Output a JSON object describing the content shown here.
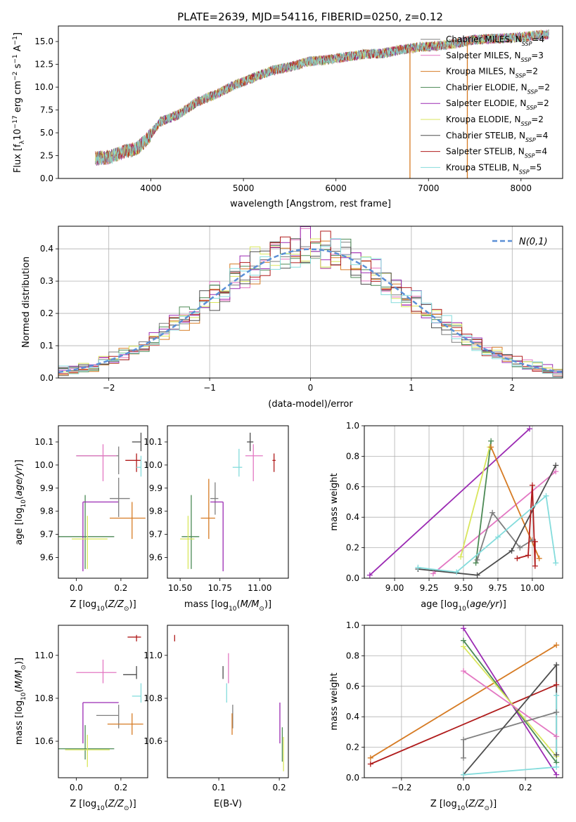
{
  "figure": {
    "title": "PLATE=2639, MJD=54116, FIBERID=0250, z=0.12"
  },
  "models": [
    {
      "name": "Chabrier MILES",
      "nssp": "4",
      "color": "#7f7f7f"
    },
    {
      "name": "Salpeter MILES",
      "nssp": "3",
      "color": "#e377c2"
    },
    {
      "name": "Kroupa MILES",
      "nssp": "2",
      "color": "#d67b24"
    },
    {
      "name": "Chabrier ELODIE",
      "nssp": "2",
      "color": "#4c8a55"
    },
    {
      "name": "Salpeter ELODIE",
      "nssp": "2",
      "color": "#9b2ab3"
    },
    {
      "name": "Kroupa ELODIE",
      "nssp": "2",
      "color": "#d9e65c"
    },
    {
      "name": "Chabrier STELIB",
      "nssp": "4",
      "color": "#4d4d4d"
    },
    {
      "name": "Salpeter STELIB",
      "nssp": "4",
      "color": "#b01c1c"
    },
    {
      "name": "Kroupa STELIB",
      "nssp": "5",
      "color": "#84dcdc"
    }
  ],
  "chart_data": [
    {
      "type": "line",
      "panel": "spectrum",
      "title": "PLATE=2639, MJD=54116, FIBERID=0250, z=0.12",
      "xlabel": "wavelength [Angstrom, rest frame]",
      "ylabel": "Flux [f_λ 10^-17 erg cm^-2 s^-1 A^-1]",
      "xlim": [
        3000,
        8450
      ],
      "ylim": [
        0,
        16.7
      ],
      "xticks": [
        4000,
        5000,
        6000,
        7000,
        8000
      ],
      "yticks": [
        0.0,
        2.5,
        5.0,
        7.5,
        10.0,
        12.5,
        15.0
      ],
      "legend_position": "right",
      "continuum": {
        "x": [
          3400,
          3550,
          3700,
          3850,
          3950,
          4100,
          4300,
          4500,
          4700,
          4900,
          5100,
          5300,
          5500,
          5700,
          5900,
          6100,
          6300,
          6500,
          6700,
          6900,
          7100,
          7300,
          7500,
          7700,
          7900,
          8100,
          8300
        ],
        "y": [
          2.2,
          2.3,
          2.9,
          3.3,
          4.2,
          6.2,
          7.0,
          8.4,
          9.2,
          10.2,
          11.0,
          11.8,
          12.2,
          12.8,
          13.0,
          13.3,
          13.6,
          13.7,
          14.1,
          14.4,
          14.5,
          14.8,
          15.2,
          15.3,
          15.4,
          15.6,
          15.8
        ]
      },
      "spikes": [
        {
          "x": 6800,
          "y": 0.0,
          "series": "Kroupa MILES"
        },
        {
          "x": 7420,
          "y": 0.0,
          "series": "Kroupa MILES"
        }
      ]
    },
    {
      "type": "step",
      "panel": "residual-histogram",
      "xlabel": "(data-model)/error",
      "ylabel": "Normed distribution",
      "xlim": [
        -2.5,
        2.5
      ],
      "ylim": [
        0,
        0.47
      ],
      "xticks": [
        -2,
        -1,
        0,
        1,
        2
      ],
      "yticks": [
        0.0,
        0.1,
        0.2,
        0.3,
        0.4
      ],
      "grid": true,
      "legend": "N(0,1)",
      "legend_position": "top-right",
      "bin_width": 0.1,
      "gaussian": {
        "mean": 0,
        "sigma": 1
      }
    },
    {
      "type": "scatter",
      "panel": "age-vs-Z",
      "xlabel": "Z [log10(Z/Z_sun)]",
      "ylabel": "age [log10(age/yr)]",
      "xlim": [
        -0.08,
        0.32
      ],
      "ylim": [
        9.51,
        10.17
      ],
      "xticks": [
        0.0,
        0.2
      ],
      "yticks": [
        9.6,
        9.7,
        9.8,
        9.9,
        10.0,
        10.1
      ],
      "points": [
        {
          "series": "Chabrier MILES",
          "x": 0.19,
          "xerr": [
            0.19,
            0.0
          ],
          "y": 10.04,
          "yerr": [
            0.08,
            0.04
          ]
        },
        {
          "series": "Salpeter MILES",
          "x": 0.12,
          "xerr": [
            0.12,
            0.06
          ],
          "y": 10.04,
          "yerr": [
            0.11,
            0.05
          ]
        },
        {
          "series": "Kroupa MILES",
          "x": 0.25,
          "xerr": [
            0.1,
            0.06
          ],
          "y": 9.77,
          "yerr": [
            0.09,
            0.07
          ]
        },
        {
          "series": "Chabrier ELODIE",
          "x": 0.04,
          "xerr": [
            0.15,
            0.13
          ],
          "y": 9.69,
          "yerr": [
            0.14,
            0.18
          ]
        },
        {
          "series": "Salpeter ELODIE",
          "x": 0.03,
          "xerr": [
            0.0,
            0.16
          ],
          "y": 9.84,
          "yerr": [
            0.3,
            0.0
          ]
        },
        {
          "series": "Kroupa ELODIE",
          "x": 0.05,
          "xerr": [
            0.07,
            0.09
          ],
          "y": 9.68,
          "yerr": [
            0.13,
            0.1
          ]
        },
        {
          "series": "Chabrier STELIB",
          "x": 0.29,
          "xerr": [
            0.04,
            0.0
          ],
          "y": 10.1,
          "yerr": [
            0.04,
            0.04
          ]
        },
        {
          "series": "Salpeter STELIB",
          "x": 0.27,
          "xerr": [
            0.05,
            0.02
          ],
          "y": 10.02,
          "yerr": [
            0.05,
            0.03
          ]
        },
        {
          "series": "Kroupa STELIB",
          "x": 0.29,
          "xerr": [
            0.02,
            0.0
          ],
          "y": 9.99,
          "yerr": [
            0.04,
            0.05
          ]
        },
        {
          "series": "Chabrier MILES",
          "x": 0.19,
          "xerr": [
            0.04,
            0.05
          ],
          "y": 9.855,
          "yerr": [
            0.08,
            0.09
          ]
        }
      ]
    },
    {
      "type": "scatter",
      "panel": "age-vs-mass",
      "xlabel": "mass [log10(M/M_sun)]",
      "ylabel": "",
      "xlim": [
        10.42,
        11.18
      ],
      "ylim": [
        9.51,
        10.17
      ],
      "xticks": [
        10.5,
        10.75,
        11.0
      ],
      "yticks": [
        9.6,
        9.7,
        9.8,
        9.9,
        10.0,
        10.1
      ],
      "points": [
        {
          "series": "Chabrier MILES",
          "x": 10.72,
          "xerr": [
            0.03,
            0.02
          ],
          "y": 9.855,
          "yerr": [
            0.07,
            0.07
          ]
        },
        {
          "series": "Salpeter MILES",
          "x": 10.96,
          "xerr": [
            0.05,
            0.06
          ],
          "y": 10.04,
          "yerr": [
            0.11,
            0.05
          ]
        },
        {
          "series": "Kroupa MILES",
          "x": 10.68,
          "xerr": [
            0.05,
            0.04
          ],
          "y": 9.77,
          "yerr": [
            0.09,
            0.17
          ]
        },
        {
          "series": "Chabrier ELODIE",
          "x": 10.57,
          "xerr": [
            0.06,
            0.05
          ],
          "y": 9.69,
          "yerr": [
            0.14,
            0.18
          ]
        },
        {
          "series": "Salpeter ELODIE",
          "x": 10.77,
          "xerr": [
            0.08,
            0.0
          ],
          "y": 9.84,
          "yerr": [
            0.3,
            0.0
          ]
        },
        {
          "series": "Kroupa ELODIE",
          "x": 10.55,
          "xerr": [
            0.05,
            0.04
          ],
          "y": 9.68,
          "yerr": [
            0.13,
            0.1
          ]
        },
        {
          "series": "Chabrier STELIB",
          "x": 10.94,
          "xerr": [
            0.02,
            0.02
          ],
          "y": 10.1,
          "yerr": [
            0.04,
            0.04
          ]
        },
        {
          "series": "Salpeter STELIB",
          "x": 11.09,
          "xerr": [
            0.01,
            0.01
          ],
          "y": 10.02,
          "yerr": [
            0.05,
            0.03
          ]
        },
        {
          "series": "Kroupa STELIB",
          "x": 10.87,
          "xerr": [
            0.04,
            0.02
          ],
          "y": 9.99,
          "yerr": [
            0.04,
            0.08
          ]
        }
      ]
    },
    {
      "type": "line",
      "panel": "mass-weight-vs-age",
      "xlabel": "age [log10(age/yr)]",
      "ylabel": "mass weight",
      "xlim": [
        8.78,
        10.22
      ],
      "ylim": [
        0,
        1.0
      ],
      "xticks": [
        9.0,
        9.25,
        9.5,
        9.75,
        10.0
      ],
      "yticks": [
        0.0,
        0.2,
        0.4,
        0.6,
        0.8,
        1.0
      ],
      "grid": true,
      "series": [
        {
          "name": "Salpeter ELODIE",
          "x": [
            8.82,
            9.98
          ],
          "y": [
            0.02,
            0.98
          ]
        },
        {
          "name": "Salpeter MILES",
          "x": [
            9.28,
            10.17
          ],
          "y": [
            0.03,
            0.7
          ]
        },
        {
          "name": "Kroupa ELODIE",
          "x": [
            9.48,
            9.69
          ],
          "y": [
            0.14,
            0.86
          ]
        },
        {
          "name": "Chabrier ELODIE",
          "x": [
            9.59,
            9.7
          ],
          "y": [
            0.1,
            0.9
          ]
        },
        {
          "name": "Kroupa MILES",
          "x": [
            9.7,
            10.05
          ],
          "y": [
            0.86,
            0.13
          ]
        },
        {
          "name": "Chabrier MILES",
          "x": [
            9.6,
            9.71,
            9.91,
            10.0
          ],
          "y": [
            0.12,
            0.43,
            0.2,
            0.25
          ]
        },
        {
          "name": "Chabrier STELIB",
          "x": [
            9.17,
            9.6,
            9.85,
            10.17
          ],
          "y": [
            0.06,
            0.02,
            0.18,
            0.74
          ]
        },
        {
          "name": "Salpeter STELIB",
          "x": [
            9.89,
            9.97,
            10.0,
            10.02,
            10.02
          ],
          "y": [
            0.13,
            0.15,
            0.61,
            0.08,
            0.24
          ]
        },
        {
          "name": "Kroupa STELIB",
          "x": [
            9.17,
            9.45,
            9.75,
            10.1,
            10.17
          ],
          "y": [
            0.07,
            0.04,
            0.27,
            0.54,
            0.1
          ]
        }
      ]
    },
    {
      "type": "scatter",
      "panel": "mass-vs-Z",
      "xlabel": "Z [log10(Z/Z_sun)]",
      "ylabel": "mass [log10(M/M_sun)]",
      "xlim": [
        -0.08,
        0.32
      ],
      "ylim": [
        10.43,
        11.14
      ],
      "xticks": [
        0.0,
        0.2
      ],
      "yticks": [
        10.6,
        10.8,
        11.0
      ],
      "points": [
        {
          "series": "Chabrier MILES",
          "x": 0.19,
          "xerr": [
            0.1,
            0.0
          ],
          "y": 10.72,
          "yerr": [
            0.06,
            0.05
          ]
        },
        {
          "series": "Salpeter MILES",
          "x": 0.12,
          "xerr": [
            0.12,
            0.06
          ],
          "y": 10.92,
          "yerr": [
            0.05,
            0.06
          ]
        },
        {
          "series": "Kroupa MILES",
          "x": 0.25,
          "xerr": [
            0.11,
            0.05
          ],
          "y": 10.68,
          "yerr": [
            0.05,
            0.05
          ]
        },
        {
          "series": "Chabrier ELODIE",
          "x": 0.04,
          "xerr": [
            0.13,
            0.13
          ],
          "y": 10.565,
          "yerr": [
            0.05,
            0.11
          ]
        },
        {
          "series": "Salpeter ELODIE",
          "x": 0.03,
          "xerr": [
            0.0,
            0.16
          ],
          "y": 10.78,
          "yerr": [
            0.19,
            0.0
          ]
        },
        {
          "series": "Kroupa ELODIE",
          "x": 0.05,
          "xerr": [
            0.1,
            0.1
          ],
          "y": 10.56,
          "yerr": [
            0.08,
            0.07
          ]
        },
        {
          "series": "Chabrier STELIB",
          "x": 0.27,
          "xerr": [
            0.06,
            0.0
          ],
          "y": 10.91,
          "yerr": [
            0.02,
            0.04
          ]
        },
        {
          "series": "Salpeter STELIB",
          "x": 0.27,
          "xerr": [
            0.04,
            0.02
          ],
          "y": 11.085,
          "yerr": [
            0.02,
            0.01
          ]
        },
        {
          "series": "Kroupa STELIB",
          "x": 0.29,
          "xerr": [
            0.04,
            0.0
          ],
          "y": 10.81,
          "yerr": [
            0.03,
            0.06
          ]
        }
      ]
    },
    {
      "type": "scatter",
      "panel": "mass-vs-EBV",
      "xlabel": "E(B-V)",
      "ylabel": "",
      "xlim": [
        0.015,
        0.215
      ],
      "ylim": [
        10.43,
        11.14
      ],
      "xticks": [
        0.1,
        0.2
      ],
      "yticks": [
        10.6,
        10.8,
        11.0
      ],
      "points": [
        {
          "series": "Chabrier MILES",
          "x": 0.123,
          "y": 10.72,
          "yerr": [
            0.06,
            0.05
          ]
        },
        {
          "series": "Salpeter MILES",
          "x": 0.116,
          "y": 10.92,
          "yerr": [
            0.05,
            0.09
          ]
        },
        {
          "series": "Kroupa MILES",
          "x": 0.122,
          "y": 10.68,
          "yerr": [
            0.05,
            0.05
          ]
        },
        {
          "series": "Chabrier ELODIE",
          "x": 0.205,
          "y": 10.565,
          "yerr": [
            0.06,
            0.1
          ]
        },
        {
          "series": "Salpeter ELODIE",
          "x": 0.201,
          "y": 10.78,
          "yerr": [
            0.19,
            0.0
          ]
        },
        {
          "series": "Kroupa ELODIE",
          "x": 0.207,
          "y": 10.56,
          "yerr": [
            0.1,
            0.06
          ]
        },
        {
          "series": "Chabrier STELIB",
          "x": 0.107,
          "y": 10.91,
          "yerr": [
            0.02,
            0.04
          ]
        },
        {
          "series": "Salpeter STELIB",
          "x": 0.027,
          "y": 11.085,
          "yerr": [
            0.02,
            0.01
          ]
        },
        {
          "series": "Kroupa STELIB",
          "x": 0.113,
          "y": 10.81,
          "yerr": [
            0.03,
            0.06
          ]
        }
      ]
    },
    {
      "type": "line",
      "panel": "mass-weight-vs-Z",
      "xlabel": "Z [log10(Z/Z_sun)]",
      "ylabel": "mass weight",
      "xlim": [
        -0.32,
        0.32
      ],
      "ylim": [
        0,
        1.0
      ],
      "xticks": [
        -0.2,
        0.0,
        0.2
      ],
      "yticks": [
        0.0,
        0.2,
        0.4,
        0.6,
        0.8,
        1.0
      ],
      "grid": true,
      "series": [
        {
          "name": "Kroupa MILES",
          "x": [
            -0.3,
            0.3
          ],
          "y": [
            0.13,
            0.87
          ]
        },
        {
          "name": "Salpeter STELIB",
          "x": [
            -0.3,
            0.3
          ],
          "y": [
            0.09,
            0.61
          ]
        },
        {
          "name": "Salpeter ELODIE",
          "x": [
            0.0,
            0.3
          ],
          "y": [
            0.98,
            0.02
          ]
        },
        {
          "name": "Chabrier ELODIE",
          "x": [
            0.0,
            0.3
          ],
          "y": [
            0.9,
            0.1
          ]
        },
        {
          "name": "Kroupa ELODIE",
          "x": [
            0.0,
            0.3
          ],
          "y": [
            0.86,
            0.14
          ]
        },
        {
          "name": "Salpeter MILES",
          "x": [
            0.0,
            0.3
          ],
          "y": [
            0.7,
            0.27
          ]
        },
        {
          "name": "Chabrier MILES",
          "x": [
            0.0,
            0.0,
            0.3
          ],
          "y": [
            0.13,
            0.25,
            0.43
          ]
        },
        {
          "name": "Chabrier STELIB",
          "x": [
            0.0,
            0.3,
            0.3
          ],
          "y": [
            0.02,
            0.74,
            0.15
          ]
        },
        {
          "name": "Kroupa STELIB",
          "x": [
            0.0,
            0.3,
            0.3
          ],
          "y": [
            0.02,
            0.07,
            0.54
          ]
        }
      ]
    }
  ]
}
